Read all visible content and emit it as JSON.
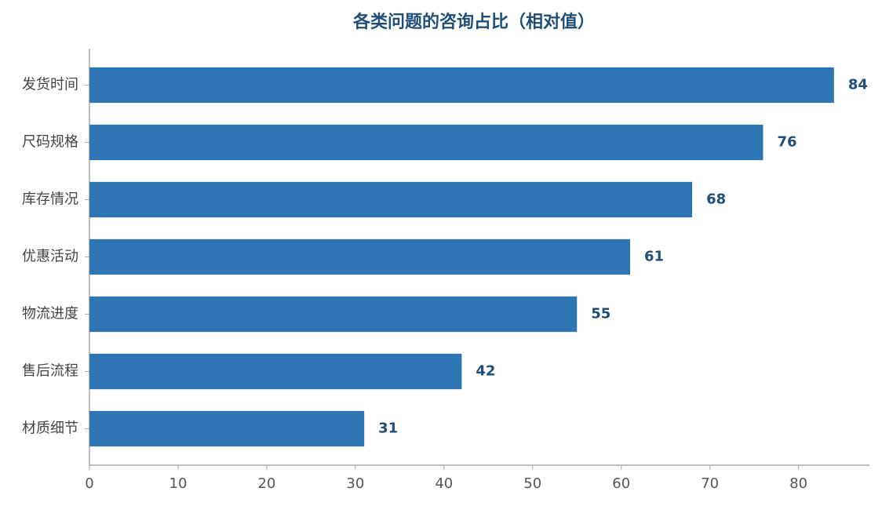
{
  "chart_data": {
    "type": "bar",
    "orientation": "horizontal",
    "title": "各类问题的咨询占比（相对值）",
    "categories": [
      "发货时间",
      "尺码规格",
      "库存情况",
      "优惠活动",
      "物流进度",
      "售后流程",
      "材质细节"
    ],
    "values": [
      84,
      76,
      68,
      61,
      55,
      42,
      31
    ],
    "color": "#2e75b6",
    "xlim": [
      0,
      88
    ],
    "xticks": [
      0,
      10,
      20,
      30,
      40,
      50,
      60,
      70,
      80
    ],
    "grid": false
  }
}
